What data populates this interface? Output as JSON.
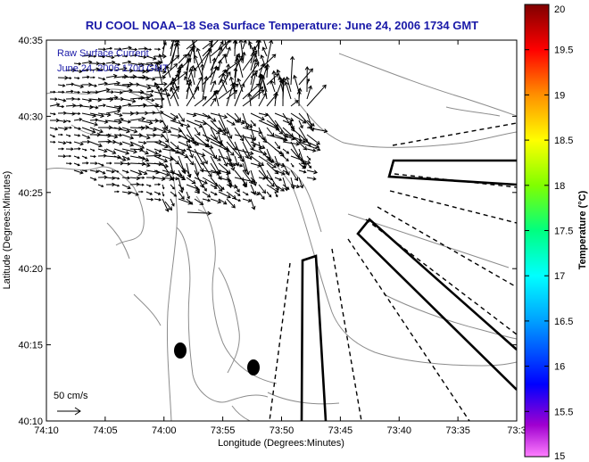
{
  "title": "RU COOL   NOAA–18  Sea Surface Temperature:  June 24, 2006 1734 GMT",
  "colors": {
    "title": "#1a1aa8",
    "legend_text": "#1a1aa8",
    "axes": "#000000",
    "contour": "#8c8c8c",
    "vector": "#000000"
  },
  "legend": {
    "line1": "Raw Surface Current",
    "line2": "June 24, 2006 1700 GMT"
  },
  "scale_label": "50 cm/s",
  "xlabel": "Longitude (Degrees:Minutes)",
  "ylabel": "Latitude (Degrees:Minutes)",
  "x_ticks": [
    "74:10",
    "74:05",
    "74:00",
    "73:55",
    "73:50",
    "73:45",
    "73:40",
    "73:35",
    "73:3"
  ],
  "y_ticks": [
    "40:35",
    "40:30",
    "40:25",
    "40:20",
    "40:15",
    "40:10"
  ],
  "colorbar": {
    "label": "Temperature (°C)",
    "ticks": [
      "20",
      "19.5",
      "19",
      "18.5",
      "18",
      "17.5",
      "17",
      "16.5",
      "16",
      "15.5",
      "15"
    ],
    "min": 15,
    "max": 20
  }
}
